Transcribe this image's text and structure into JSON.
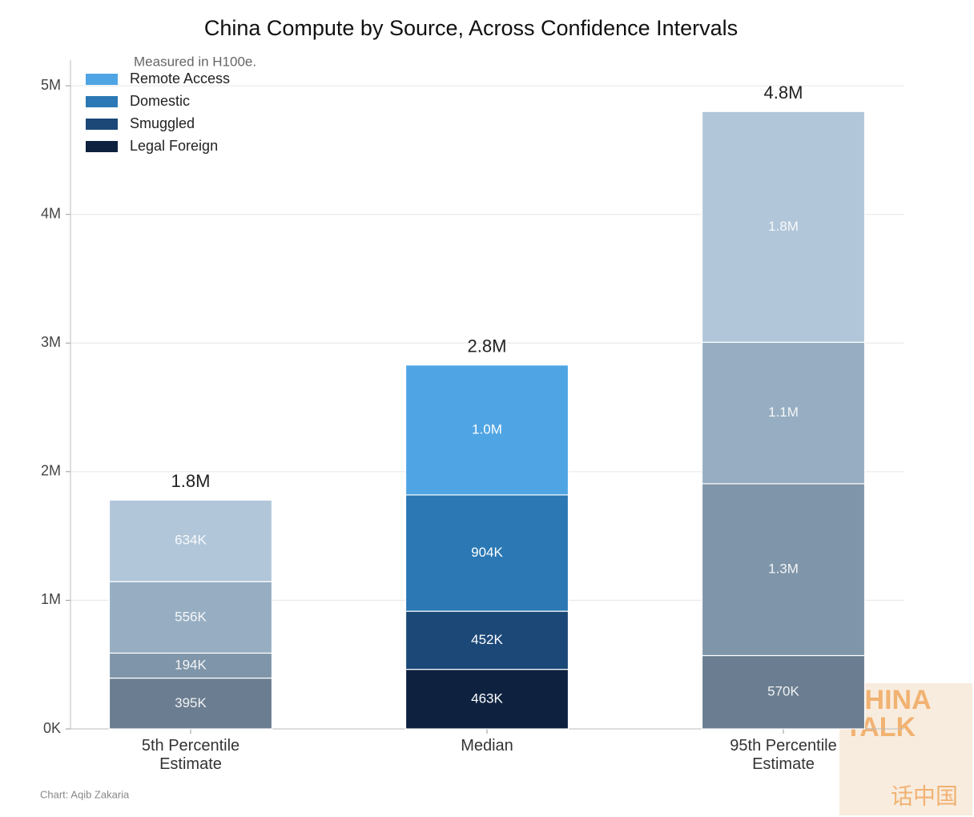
{
  "chart_data": {
    "type": "stacked_bar",
    "title": "China Compute by Source, Across Confidence Intervals",
    "subtitle": "Measured in H100e.",
    "source": "Chart: Aqib Zakaria",
    "watermark": [
      "CHINA",
      "TALK",
      "话中国"
    ],
    "categories": [
      "5th Percentile Estimate",
      "Median",
      "95th Percentile Estimate"
    ],
    "series": [
      {
        "name": "Legal Foreign",
        "color": "#0e2240",
        "colors": [
          "#6b7d90",
          "#0e2240",
          "#6b7d90"
        ],
        "values": [
          395000,
          463000,
          570000
        ],
        "value_labels": [
          "395K",
          "463K",
          "570K"
        ]
      },
      {
        "name": "Smuggled",
        "color": "#1c4878",
        "colors": [
          "#7f95a9",
          "#1c4878",
          "#7f95a9"
        ],
        "values": [
          194000,
          452000,
          1336000
        ],
        "value_labels": [
          "194K",
          "452K",
          "1.3M"
        ]
      },
      {
        "name": "Domestic",
        "color": "#2b78b4",
        "colors": [
          "#97aec2",
          "#2b78b4",
          "#97aec2"
        ],
        "values": [
          556000,
          904000,
          1100000
        ],
        "value_labels": [
          "556K",
          "904K",
          "1.1M"
        ]
      },
      {
        "name": "Remote Access",
        "color": "#4fa5e4",
        "colors": [
          "#b1c6d9",
          "#4fa5e4",
          "#b1c6d9"
        ],
        "values": [
          634000,
          1010000,
          1794000
        ],
        "value_labels": [
          "634K",
          "1.0M",
          "1.8M"
        ]
      }
    ],
    "totals": [
      1779000,
      2829000,
      4800000
    ],
    "total_labels": [
      "1.8M",
      "2.8M",
      "4.8M"
    ],
    "ylim": [
      0,
      5200000
    ],
    "yticks": [
      {
        "value": 0,
        "label": "0K"
      },
      {
        "value": 1000000,
        "label": "1M"
      },
      {
        "value": 2000000,
        "label": "2M"
      },
      {
        "value": 3000000,
        "label": "3M"
      },
      {
        "value": 4000000,
        "label": "4M"
      },
      {
        "value": 5000000,
        "label": "5M"
      }
    ],
    "grid": true,
    "legend": "upper left"
  }
}
